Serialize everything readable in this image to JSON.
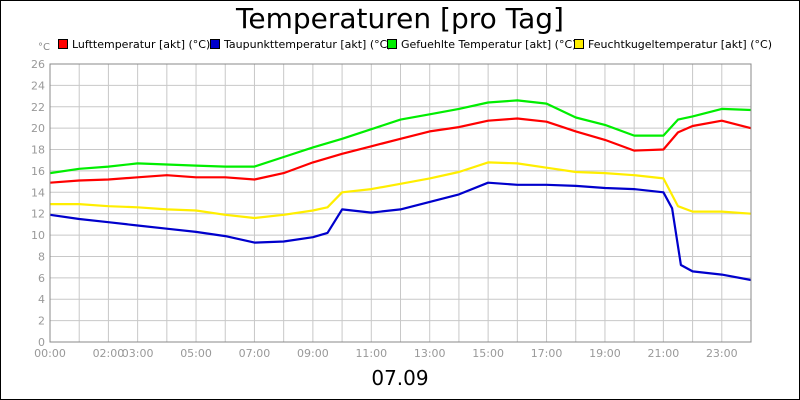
{
  "chart_data": {
    "type": "line",
    "title": "Temperaturen [pro Tag]",
    "xlabel": "07.09",
    "unit_label": "°C",
    "ylim": [
      0,
      26
    ],
    "y_ticks": [
      0,
      2,
      4,
      6,
      8,
      10,
      12,
      14,
      16,
      18,
      20,
      22,
      24,
      26
    ],
    "xlim": [
      0,
      24
    ],
    "x_tick_labels": [
      "00:00",
      "02:00",
      "03:00",
      "05:00",
      "07:00",
      "09:00",
      "11:00",
      "13:00",
      "15:00",
      "17:00",
      "19:00",
      "21:00",
      "23:00"
    ],
    "x_tick_hours": [
      0,
      2,
      3,
      5,
      7,
      9,
      11,
      13,
      15,
      17,
      19,
      21,
      23
    ],
    "grid": true,
    "legend_position": "top",
    "series": [
      {
        "name": "Lufttemperatur [akt] (°C)",
        "color": "#ff0000",
        "x": [
          0,
          1,
          2,
          3,
          4,
          5,
          6,
          7,
          8,
          9,
          10,
          11,
          12,
          13,
          14,
          15,
          16,
          17,
          18,
          19,
          20,
          21,
          21.5,
          22,
          23,
          24
        ],
        "y": [
          14.9,
          15.1,
          15.2,
          15.4,
          15.6,
          15.4,
          15.4,
          15.2,
          15.8,
          16.8,
          17.6,
          18.3,
          19.0,
          19.7,
          20.1,
          20.7,
          20.9,
          20.6,
          19.7,
          18.9,
          17.9,
          18.0,
          19.6,
          20.2,
          20.7,
          20.0
        ]
      },
      {
        "name": "Taupunkttemperatur [akt] (°C)",
        "color": "#0000cc",
        "x": [
          0,
          1,
          2,
          3,
          4,
          5,
          6,
          7,
          8,
          9,
          9.5,
          10,
          11,
          12,
          13,
          14,
          15,
          16,
          17,
          18,
          19,
          20,
          21,
          21.3,
          21.6,
          22,
          23,
          24
        ],
        "y": [
          11.9,
          11.5,
          11.2,
          10.9,
          10.6,
          10.3,
          9.9,
          9.3,
          9.4,
          9.8,
          10.2,
          12.4,
          12.1,
          12.4,
          13.1,
          13.8,
          14.9,
          14.7,
          14.7,
          14.6,
          14.4,
          14.3,
          14.0,
          12.5,
          7.2,
          6.6,
          6.3,
          5.8
        ]
      },
      {
        "name": "Gefuehlte Temperatur [akt] (°C)",
        "color": "#00ee00",
        "x": [
          0,
          1,
          2,
          3,
          4,
          5,
          6,
          7,
          8,
          9,
          10,
          11,
          12,
          13,
          14,
          15,
          16,
          17,
          18,
          19,
          20,
          21,
          21.5,
          22,
          23,
          24
        ],
        "y": [
          15.8,
          16.2,
          16.4,
          16.7,
          16.6,
          16.5,
          16.4,
          16.4,
          17.3,
          18.2,
          19.0,
          19.9,
          20.8,
          21.3,
          21.8,
          22.4,
          22.6,
          22.3,
          21.0,
          20.3,
          19.3,
          19.3,
          20.8,
          21.1,
          21.8,
          21.7
        ]
      },
      {
        "name": "Feuchtkugeltemperatur [akt] (°C)",
        "color": "#ffee00",
        "x": [
          0,
          1,
          2,
          3,
          4,
          5,
          6,
          7,
          8,
          9,
          9.5,
          10,
          11,
          12,
          13,
          14,
          15,
          16,
          17,
          18,
          19,
          20,
          21,
          21.5,
          22,
          23,
          24
        ],
        "y": [
          12.9,
          12.9,
          12.7,
          12.6,
          12.4,
          12.3,
          11.9,
          11.6,
          11.9,
          12.3,
          12.6,
          14.0,
          14.3,
          14.8,
          15.3,
          15.9,
          16.8,
          16.7,
          16.3,
          15.9,
          15.8,
          15.6,
          15.3,
          12.7,
          12.2,
          12.2,
          12.0
        ]
      }
    ]
  }
}
